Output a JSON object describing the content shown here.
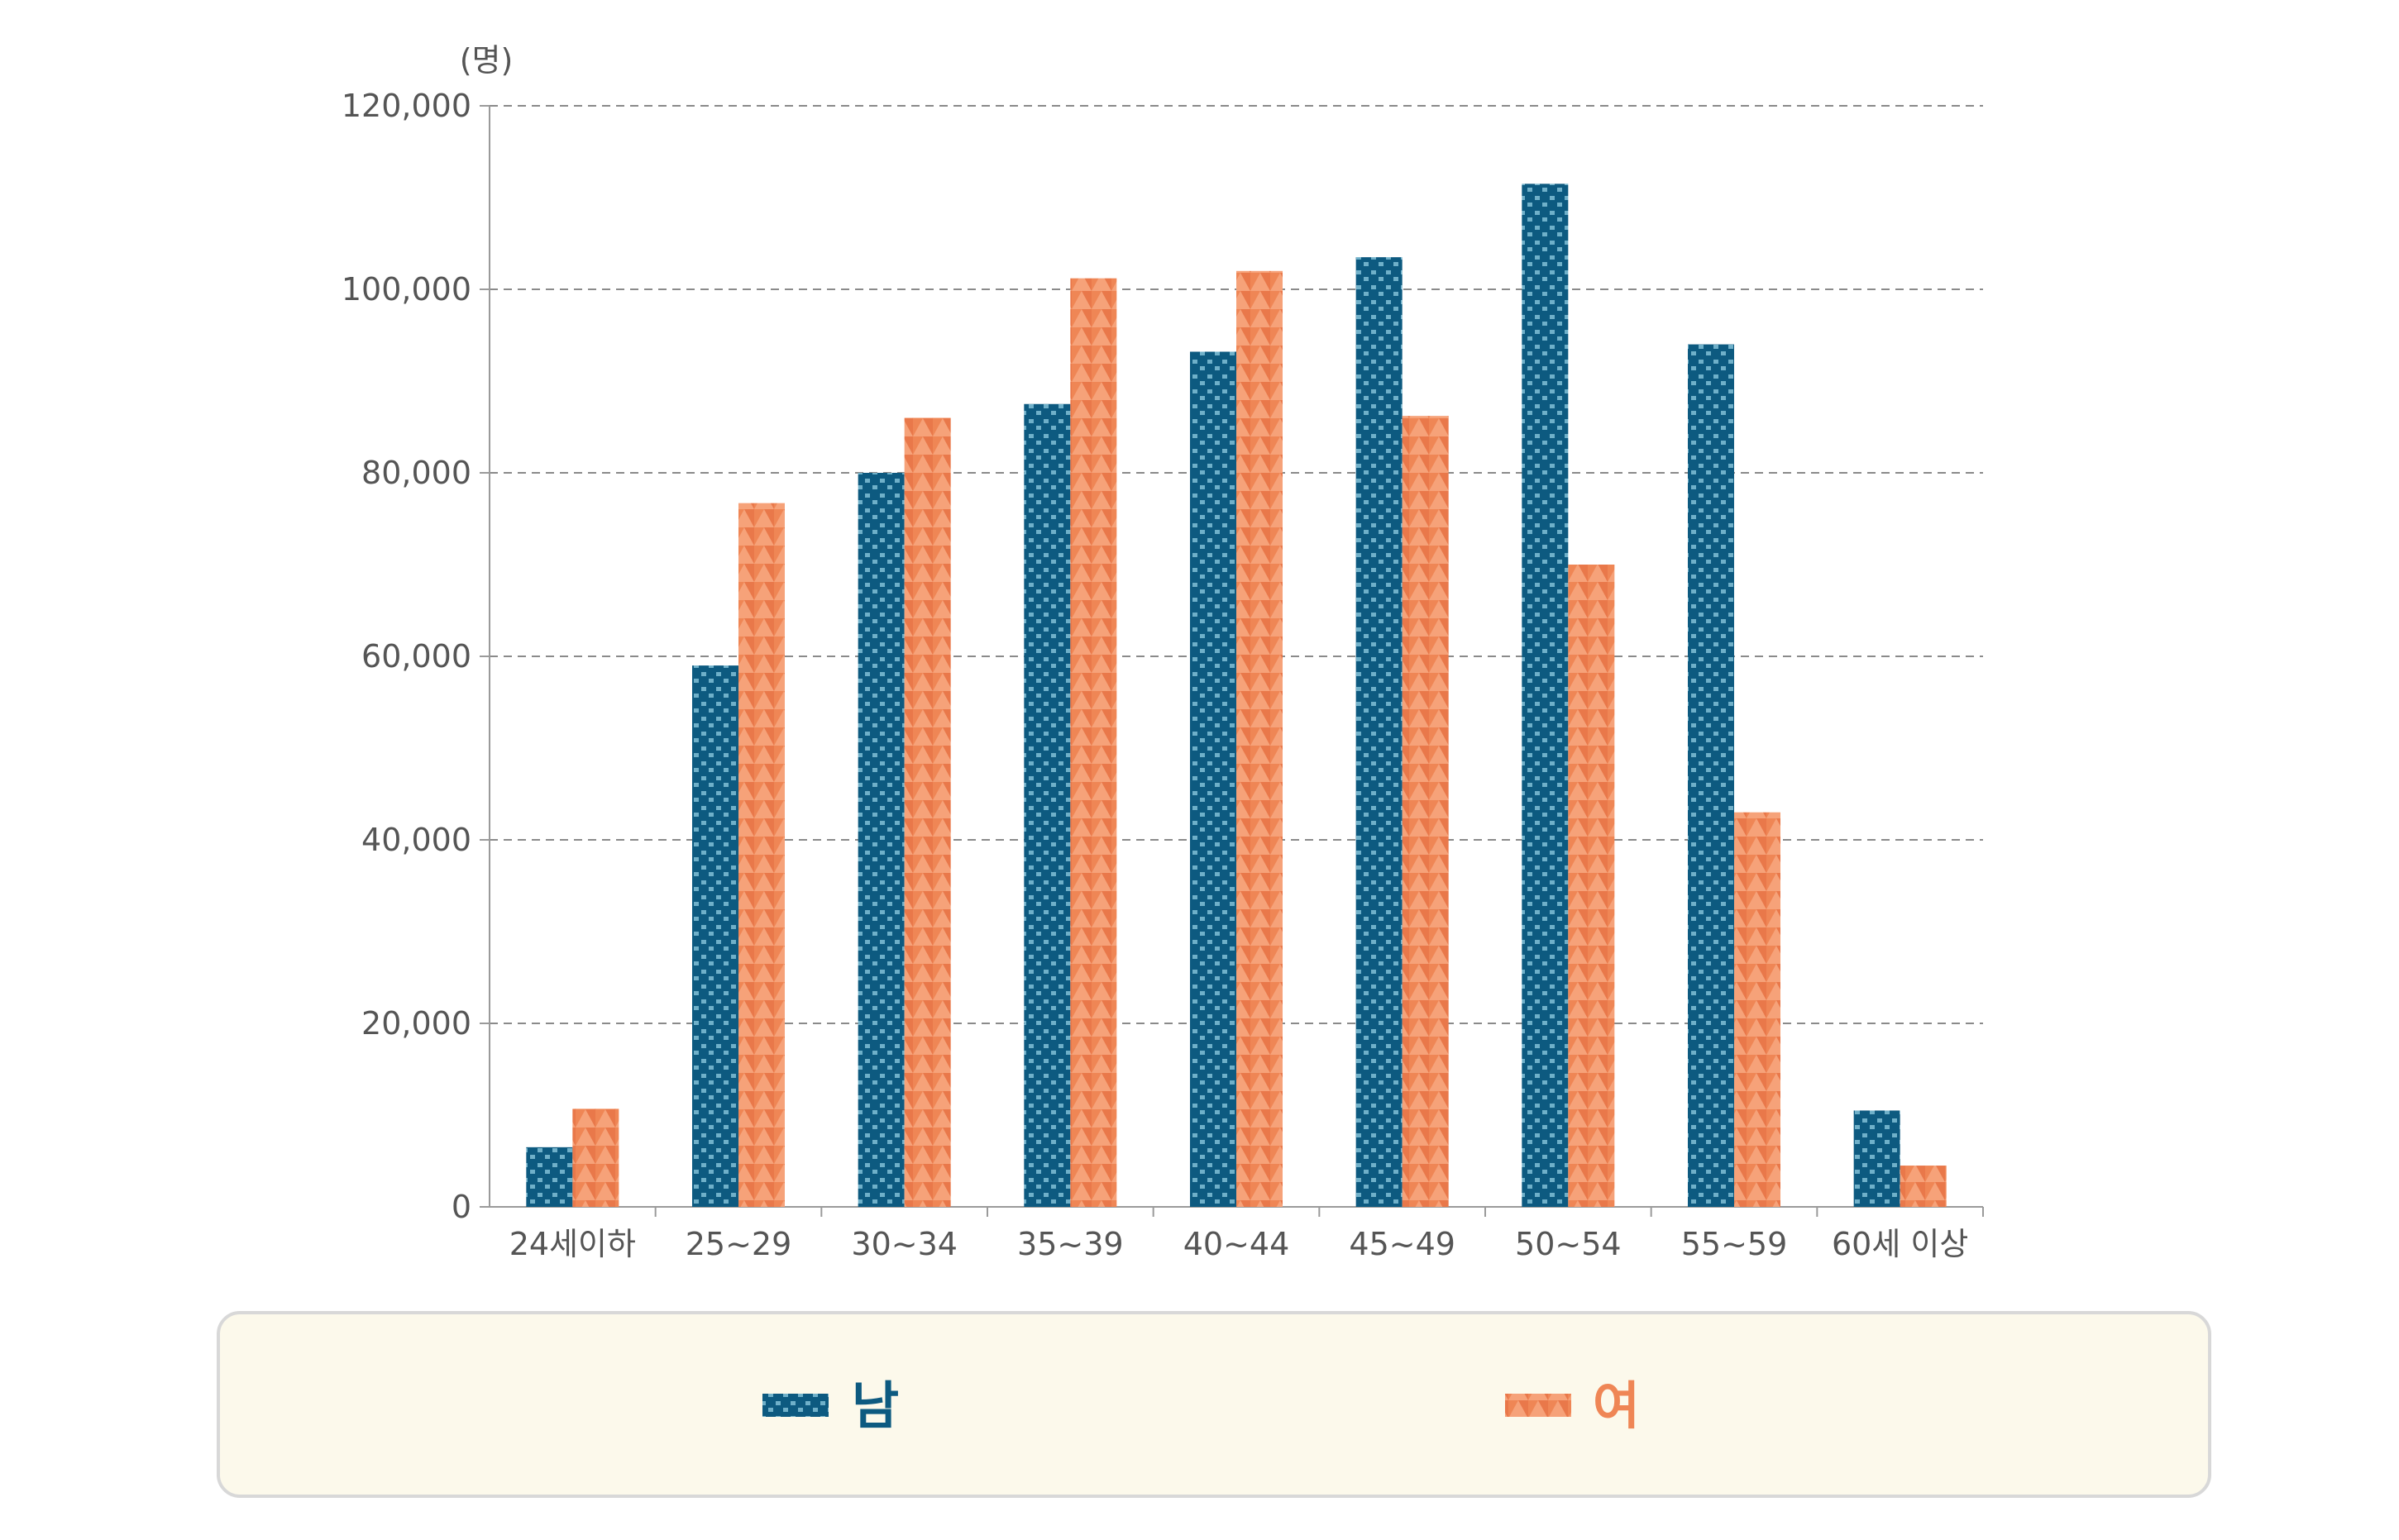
{
  "chart_data": {
    "type": "bar",
    "unit_label": "(명)",
    "categories": [
      "24세이하",
      "25~29",
      "30~34",
      "35~39",
      "40~44",
      "45~49",
      "50~54",
      "55~59",
      "60세 이상"
    ],
    "series": [
      {
        "name": "남",
        "color": "#0d5a80",
        "values": [
          6500,
          59000,
          80000,
          87500,
          93200,
          103500,
          111500,
          94000,
          10500
        ]
      },
      {
        "name": "여",
        "color": "#ef8655",
        "values": [
          10700,
          76700,
          86000,
          101200,
          102000,
          86200,
          70000,
          43000,
          4500
        ]
      }
    ],
    "ylim": [
      0,
      120000
    ],
    "yticks": [
      0,
      20000,
      40000,
      60000,
      80000,
      100000,
      120000
    ],
    "ytick_labels": [
      "0",
      "20,000",
      "40,000",
      "60,000",
      "80,000",
      "100,000",
      "120,000"
    ],
    "grid": true,
    "legend_position": "bottom"
  },
  "colors": {
    "male": "#0d5a80",
    "female": "#ef8655",
    "legend_background": "#fcf9eb",
    "legend_border": "#d8d8d8",
    "grid": "#8a8a8a",
    "axis": "#9a9a9a"
  }
}
